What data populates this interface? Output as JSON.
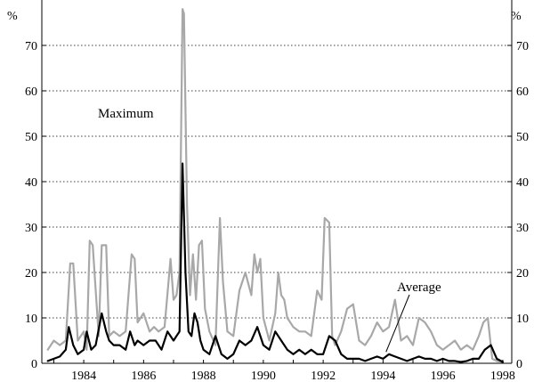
{
  "chart_data": {
    "type": "line",
    "title": "",
    "xlabel": "",
    "ylabel": "%",
    "y2label": "%",
    "xlim": [
      1982.6,
      1998.3
    ],
    "ylim": [
      0,
      80
    ],
    "yticks": [
      0,
      10,
      20,
      30,
      40,
      50,
      60,
      70
    ],
    "xticks": [
      1984,
      1986,
      1988,
      1990,
      1992,
      1994,
      1996,
      1998
    ],
    "grid": "horizontal-dotted",
    "legend": "none",
    "annotations": [
      {
        "text": "Maximum"
      },
      {
        "text": "Average",
        "arrow_to": {
          "x": 1994.1,
          "y": 2.5
        }
      }
    ],
    "series": [
      {
        "name": "Maximum",
        "color": "#a8a8a8",
        "x": [
          1982.8,
          1983.0,
          1983.2,
          1983.4,
          1983.55,
          1983.65,
          1983.8,
          1984.0,
          1984.1,
          1984.2,
          1984.3,
          1984.5,
          1984.6,
          1984.75,
          1984.85,
          1985.0,
          1985.2,
          1985.4,
          1985.6,
          1985.7,
          1985.8,
          1986.0,
          1986.2,
          1986.35,
          1986.5,
          1986.7,
          1986.9,
          1987.0,
          1987.1,
          1987.2,
          1987.3,
          1987.35,
          1987.45,
          1987.55,
          1987.65,
          1987.75,
          1987.85,
          1987.95,
          1988.05,
          1988.2,
          1988.4,
          1988.55,
          1988.65,
          1988.8,
          1989.0,
          1989.2,
          1989.4,
          1989.6,
          1989.7,
          1989.8,
          1989.9,
          1990.0,
          1990.2,
          1990.4,
          1990.5,
          1990.6,
          1990.7,
          1990.8,
          1991.0,
          1991.2,
          1991.4,
          1991.6,
          1991.8,
          1991.95,
          1992.05,
          1992.2,
          1992.3,
          1992.4,
          1992.6,
          1992.8,
          1993.0,
          1993.2,
          1993.4,
          1993.6,
          1993.8,
          1994.0,
          1994.2,
          1994.4,
          1994.6,
          1994.8,
          1995.0,
          1995.2,
          1995.4,
          1995.6,
          1995.8,
          1996.0,
          1996.2,
          1996.4,
          1996.6,
          1996.8,
          1997.0,
          1997.2,
          1997.35,
          1997.5,
          1997.65,
          1997.8,
          1998.0
        ],
        "values": [
          3,
          5,
          4,
          5,
          22,
          22,
          5,
          7,
          3,
          27,
          26,
          6,
          26,
          26,
          6,
          7,
          6,
          7,
          24,
          23,
          9,
          11,
          7,
          8,
          7,
          8,
          23,
          14,
          15,
          20,
          78,
          77,
          35,
          15,
          24,
          14,
          26,
          27,
          12,
          7,
          4,
          32,
          18,
          7,
          6,
          16,
          20,
          15,
          24,
          20,
          23,
          10,
          5,
          11,
          20,
          15,
          14,
          10,
          8,
          7,
          7,
          6,
          16,
          14,
          32,
          31,
          6,
          4,
          7,
          12,
          13,
          5,
          4,
          6,
          9,
          7,
          8,
          14,
          5,
          6,
          4,
          10,
          9,
          7,
          4,
          3,
          4,
          5,
          3,
          4,
          3,
          6,
          9,
          10,
          1,
          0.5,
          0.3
        ]
      },
      {
        "name": "Average",
        "color": "#000000",
        "x": [
          1982.8,
          1983.0,
          1983.2,
          1983.4,
          1983.5,
          1983.65,
          1983.8,
          1984.0,
          1984.1,
          1984.25,
          1984.4,
          1984.6,
          1984.75,
          1984.85,
          1985.0,
          1985.2,
          1985.4,
          1985.55,
          1985.7,
          1985.8,
          1986.0,
          1986.2,
          1986.4,
          1986.6,
          1986.8,
          1987.0,
          1987.1,
          1987.2,
          1987.3,
          1987.4,
          1987.5,
          1987.6,
          1987.7,
          1987.8,
          1987.9,
          1988.0,
          1988.2,
          1988.4,
          1988.6,
          1988.8,
          1989.0,
          1989.2,
          1989.4,
          1989.6,
          1989.8,
          1990.0,
          1990.2,
          1990.4,
          1990.6,
          1990.8,
          1991.0,
          1991.2,
          1991.4,
          1991.6,
          1991.8,
          1992.0,
          1992.2,
          1992.4,
          1992.6,
          1992.8,
          1993.0,
          1993.2,
          1993.4,
          1993.6,
          1993.8,
          1994.0,
          1994.2,
          1994.4,
          1994.6,
          1994.8,
          1995.0,
          1995.2,
          1995.4,
          1995.6,
          1995.8,
          1996.0,
          1996.2,
          1996.4,
          1996.6,
          1996.8,
          1997.0,
          1997.2,
          1997.4,
          1997.6,
          1997.8,
          1998.0
        ],
        "values": [
          0.5,
          1,
          1.5,
          3,
          8,
          4,
          2,
          3,
          7,
          3,
          4,
          11,
          7,
          5,
          4,
          4,
          3,
          7,
          4,
          5,
          4,
          5,
          5,
          3,
          7,
          5,
          6,
          7,
          44,
          20,
          7,
          6,
          11,
          9,
          5,
          3,
          2,
          6,
          2,
          1,
          2,
          5,
          4,
          5,
          8,
          4,
          3,
          7,
          5,
          3,
          2,
          3,
          2,
          3,
          2,
          2,
          6,
          5,
          2,
          1,
          1,
          1,
          0.5,
          1,
          1.5,
          1,
          2,
          1.5,
          1,
          0.5,
          1,
          1.5,
          1,
          1,
          0.5,
          1,
          0.5,
          0.5,
          0.3,
          0.5,
          1,
          1,
          3,
          4,
          1,
          0.3
        ]
      }
    ]
  }
}
